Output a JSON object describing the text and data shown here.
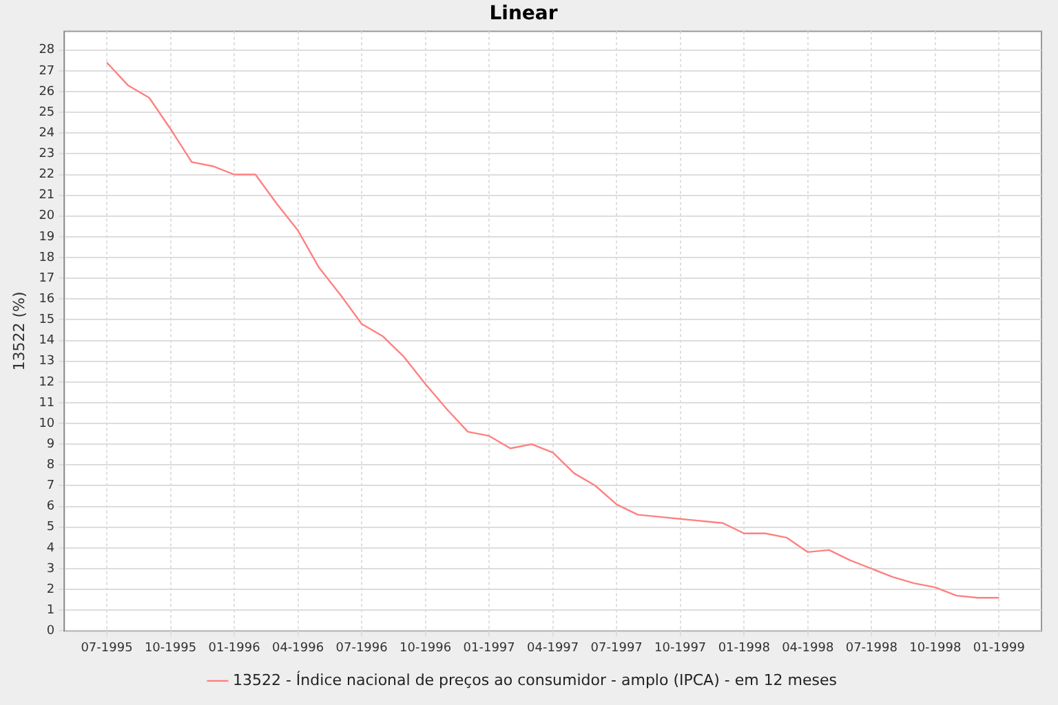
{
  "chart_data": {
    "type": "line",
    "title": "Linear",
    "ylabel": "13522 (%)",
    "x": [
      "1995-07",
      "1995-08",
      "1995-09",
      "1995-10",
      "1995-11",
      "1995-12",
      "1996-01",
      "1996-02",
      "1996-03",
      "1996-04",
      "1996-05",
      "1996-06",
      "1996-07",
      "1996-08",
      "1996-09",
      "1996-10",
      "1996-11",
      "1996-12",
      "1997-01",
      "1997-02",
      "1997-03",
      "1997-04",
      "1997-05",
      "1997-06",
      "1997-07",
      "1997-08",
      "1997-09",
      "1997-10",
      "1997-11",
      "1997-12",
      "1998-01",
      "1998-02",
      "1998-03",
      "1998-04",
      "1998-05",
      "1998-06",
      "1998-07",
      "1998-08",
      "1998-09",
      "1998-10",
      "1998-11",
      "1998-12",
      "1999-01"
    ],
    "series": [
      {
        "name": "13522 - Índice nacional de preços ao consumidor - amplo (IPCA) - em 12 meses",
        "color": "#ff8080",
        "values": [
          27.4,
          26.3,
          25.7,
          24.2,
          22.6,
          22.4,
          22.0,
          22.0,
          20.6,
          19.3,
          17.5,
          16.2,
          14.8,
          14.2,
          13.2,
          11.9,
          10.7,
          9.6,
          9.4,
          8.8,
          9.0,
          8.6,
          7.6,
          7.0,
          6.1,
          5.6,
          5.5,
          5.4,
          5.3,
          5.2,
          4.7,
          4.7,
          4.5,
          3.8,
          3.9,
          3.4,
          3.0,
          2.6,
          2.3,
          2.1,
          1.7,
          1.6,
          1.6
        ]
      }
    ],
    "xlim": [
      "1995-05",
      "1999-03"
    ],
    "xticks": [
      {
        "value": "1995-07",
        "label": "07-1995"
      },
      {
        "value": "1995-10",
        "label": "10-1995"
      },
      {
        "value": "1996-01",
        "label": "01-1996"
      },
      {
        "value": "1996-04",
        "label": "04-1996"
      },
      {
        "value": "1996-07",
        "label": "07-1996"
      },
      {
        "value": "1996-10",
        "label": "10-1996"
      },
      {
        "value": "1997-01",
        "label": "01-1997"
      },
      {
        "value": "1997-04",
        "label": "04-1997"
      },
      {
        "value": "1997-07",
        "label": "07-1997"
      },
      {
        "value": "1997-10",
        "label": "10-1997"
      },
      {
        "value": "1998-01",
        "label": "01-1998"
      },
      {
        "value": "1998-04",
        "label": "04-1998"
      },
      {
        "value": "1998-07",
        "label": "07-1998"
      },
      {
        "value": "1998-10",
        "label": "10-1998"
      },
      {
        "value": "1999-01",
        "label": "01-1999"
      }
    ],
    "ylim": [
      0,
      28.9
    ],
    "yticks": [
      0,
      1,
      2,
      3,
      4,
      5,
      6,
      7,
      8,
      9,
      10,
      11,
      12,
      13,
      14,
      15,
      16,
      17,
      18,
      19,
      20,
      21,
      22,
      23,
      24,
      25,
      26,
      27,
      28
    ],
    "grid": true,
    "legend": "bottom",
    "marker": "none",
    "line_style": "solid"
  }
}
